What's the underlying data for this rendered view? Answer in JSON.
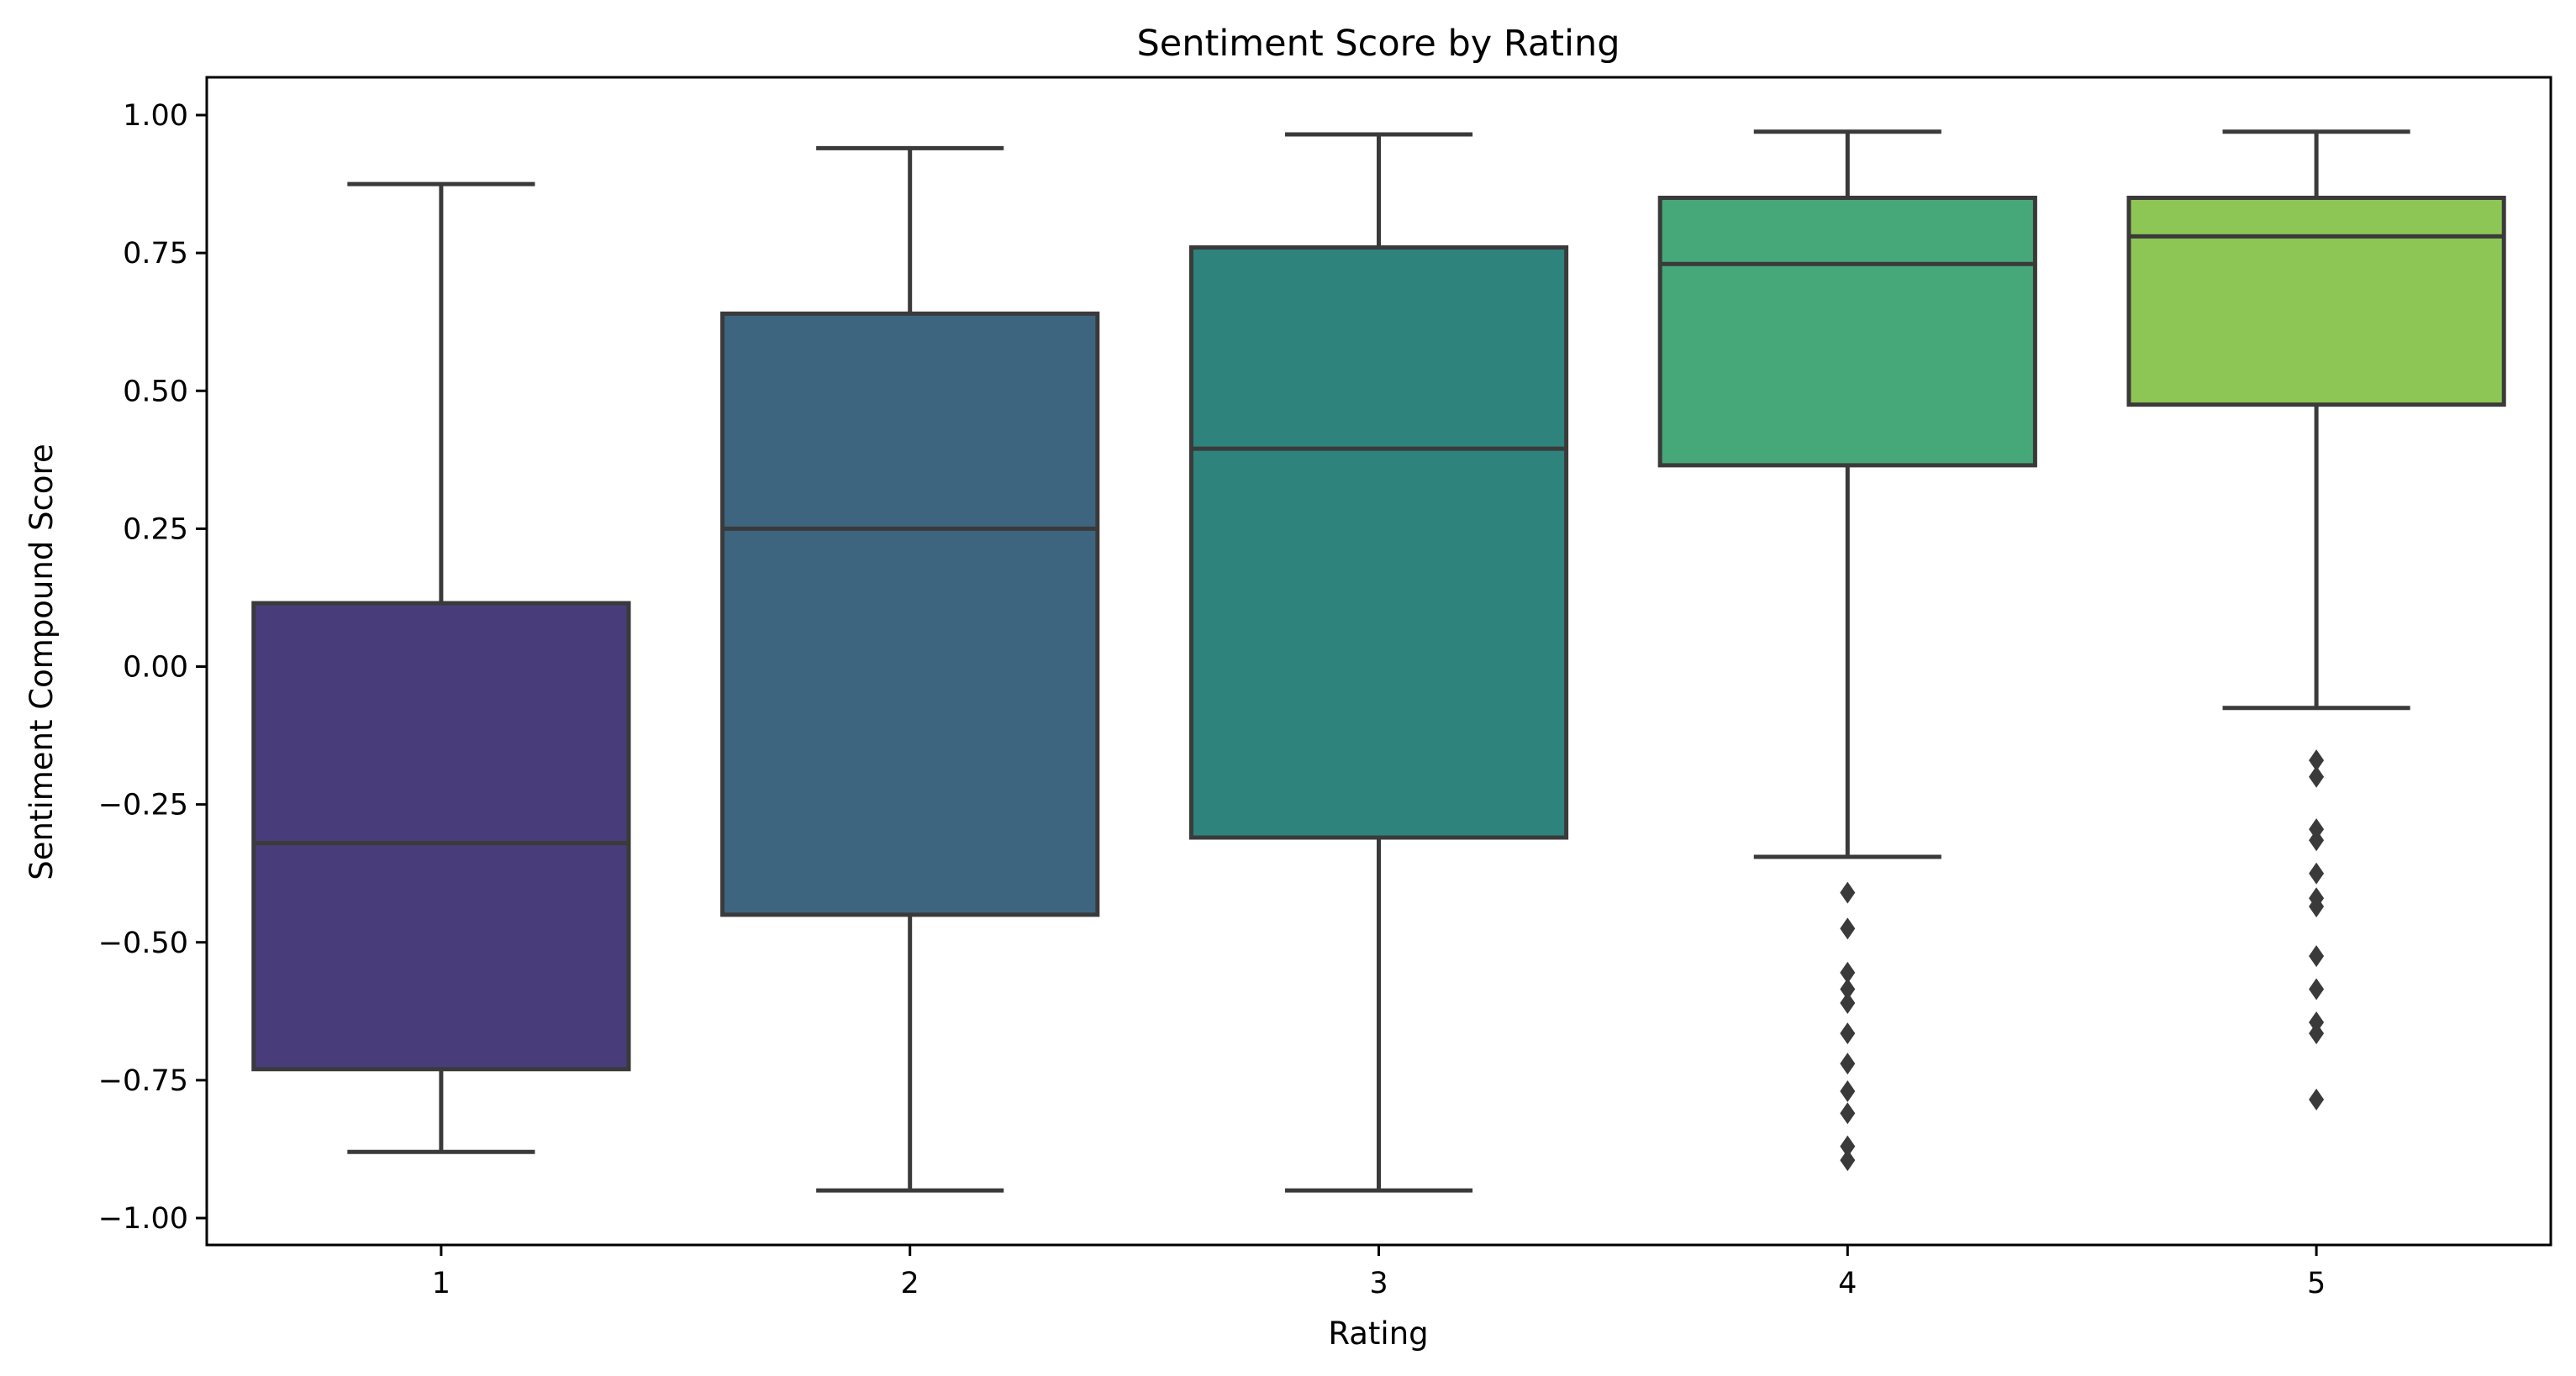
{
  "chart_data": {
    "type": "boxplot",
    "title": "Sentiment Score by Rating",
    "xlabel": "Rating",
    "ylabel": "Sentiment Compound Score",
    "ylim": [
      -1.07,
      1.07
    ],
    "yticks": [
      1.0,
      0.75,
      0.5,
      0.25,
      0.0,
      -0.25,
      -0.5,
      -0.75,
      -1.0
    ],
    "ytick_labels": [
      "1.00",
      "0.75",
      "0.50",
      "0.25",
      "0.00",
      "−0.25",
      "−0.50",
      "−0.75",
      "−1.00"
    ],
    "categories": [
      "1",
      "2",
      "3",
      "4",
      "5"
    ],
    "grid": false,
    "legend": "none",
    "boxes": [
      {
        "category": "1",
        "whisker_low": -0.88,
        "q1": -0.73,
        "median": -0.32,
        "q3": 0.115,
        "whisker_high": 0.875,
        "outliers": [],
        "color": "#483d7a"
      },
      {
        "category": "2",
        "whisker_low": -0.95,
        "q1": -0.45,
        "median": 0.25,
        "q3": 0.64,
        "whisker_high": 0.94,
        "outliers": [],
        "color": "#3d6580"
      },
      {
        "category": "3",
        "whisker_low": -0.95,
        "q1": -0.31,
        "median": 0.395,
        "q3": 0.76,
        "whisker_high": 0.965,
        "outliers": [],
        "color": "#2e837d"
      },
      {
        "category": "4",
        "whisker_low": -0.345,
        "q1": 0.365,
        "median": 0.73,
        "q3": 0.85,
        "whisker_high": 0.97,
        "outliers": [
          -0.41,
          -0.475,
          -0.555,
          -0.585,
          -0.61,
          -0.665,
          -0.72,
          -0.77,
          -0.81,
          -0.87,
          -0.895
        ],
        "color": "#46a878"
      },
      {
        "category": "5",
        "whisker_low": -0.075,
        "q1": 0.475,
        "median": 0.78,
        "q3": 0.85,
        "whisker_high": 0.97,
        "outliers": [
          -0.17,
          -0.2,
          -0.295,
          -0.315,
          -0.375,
          -0.42,
          -0.435,
          -0.525,
          -0.585,
          -0.645,
          -0.665,
          -0.785
        ],
        "color": "#8dc655"
      }
    ]
  }
}
